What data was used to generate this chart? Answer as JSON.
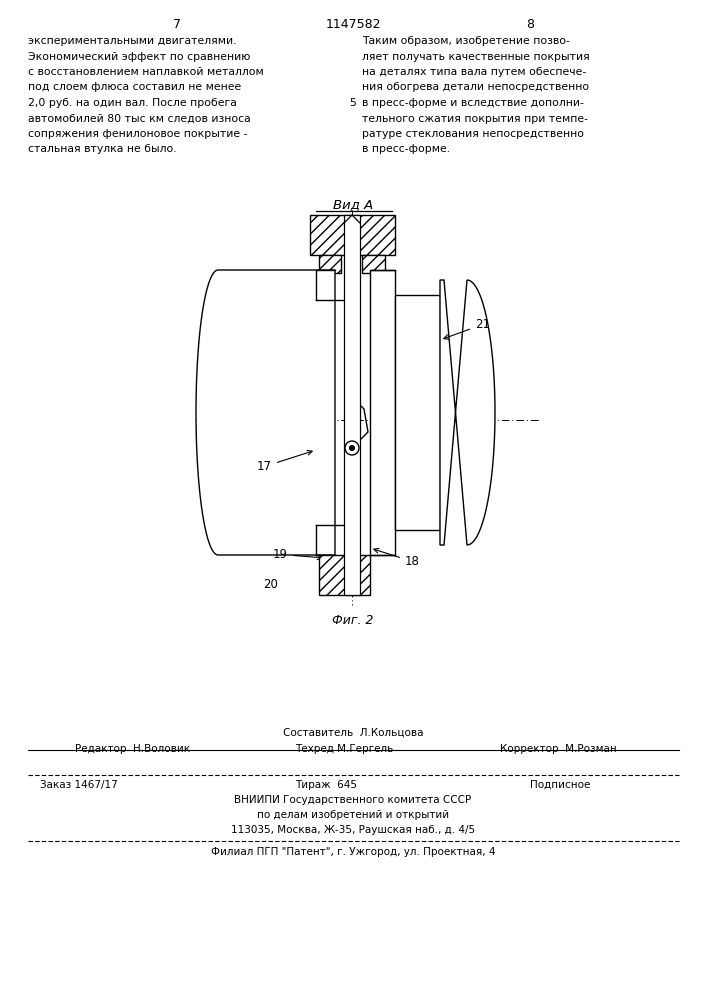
{
  "page_number_left": "7",
  "page_number_center": "1147582",
  "page_number_right": "8",
  "text_left": "экспериментальными двигателями.\nЭкономический эффект по сравнению\nс восстановлением наплавкой металлом\nпод слоем флюса составил не менее\n2,0 руб. на один вал. После пробега\nавтомобилей 80 тыс км следов износа\nсопряжения фенилоновое покрытие -\nстальная втулка не было.",
  "text_right": "Таким образом, изобретение позво-\nляет получать качественные покрытия\nна деталях типа вала путем обеспече-\nния обогрева детали непосредственно\nв пресс-форме и вследствие дополни-\nтельного сжатия покрытия при темпе-\nратуре стеклования непосредственно\nв пресс-форме.",
  "line5_label": "5",
  "vid_a_label": "Вид А",
  "fig2_label": "Фиг. 2",
  "footer_sestavitel": "Составитель  Л.Кольцова",
  "footer_editor": "Редактор  Н.Воловик",
  "footer_techred": "Техред М.Гергель",
  "footer_corrector": "Корректор  М.Розман",
  "footer_order": "Заказ 1467/17",
  "footer_tirazh": "Тираж  645",
  "footer_podpisnoe": "Подписное",
  "footer_vniiipi": "ВНИИПИ Государственного комитета СССР",
  "footer_po_delam": "по делам изобретений и открытий",
  "footer_address": "113035, Москва, Ж-35, Раушская наб., д. 4/5",
  "footer_filial": "Филиал ПГП \"Патент\", г. Ужгород, ул. Проектная, 4",
  "bg_color": "#ffffff",
  "text_color": "#000000"
}
